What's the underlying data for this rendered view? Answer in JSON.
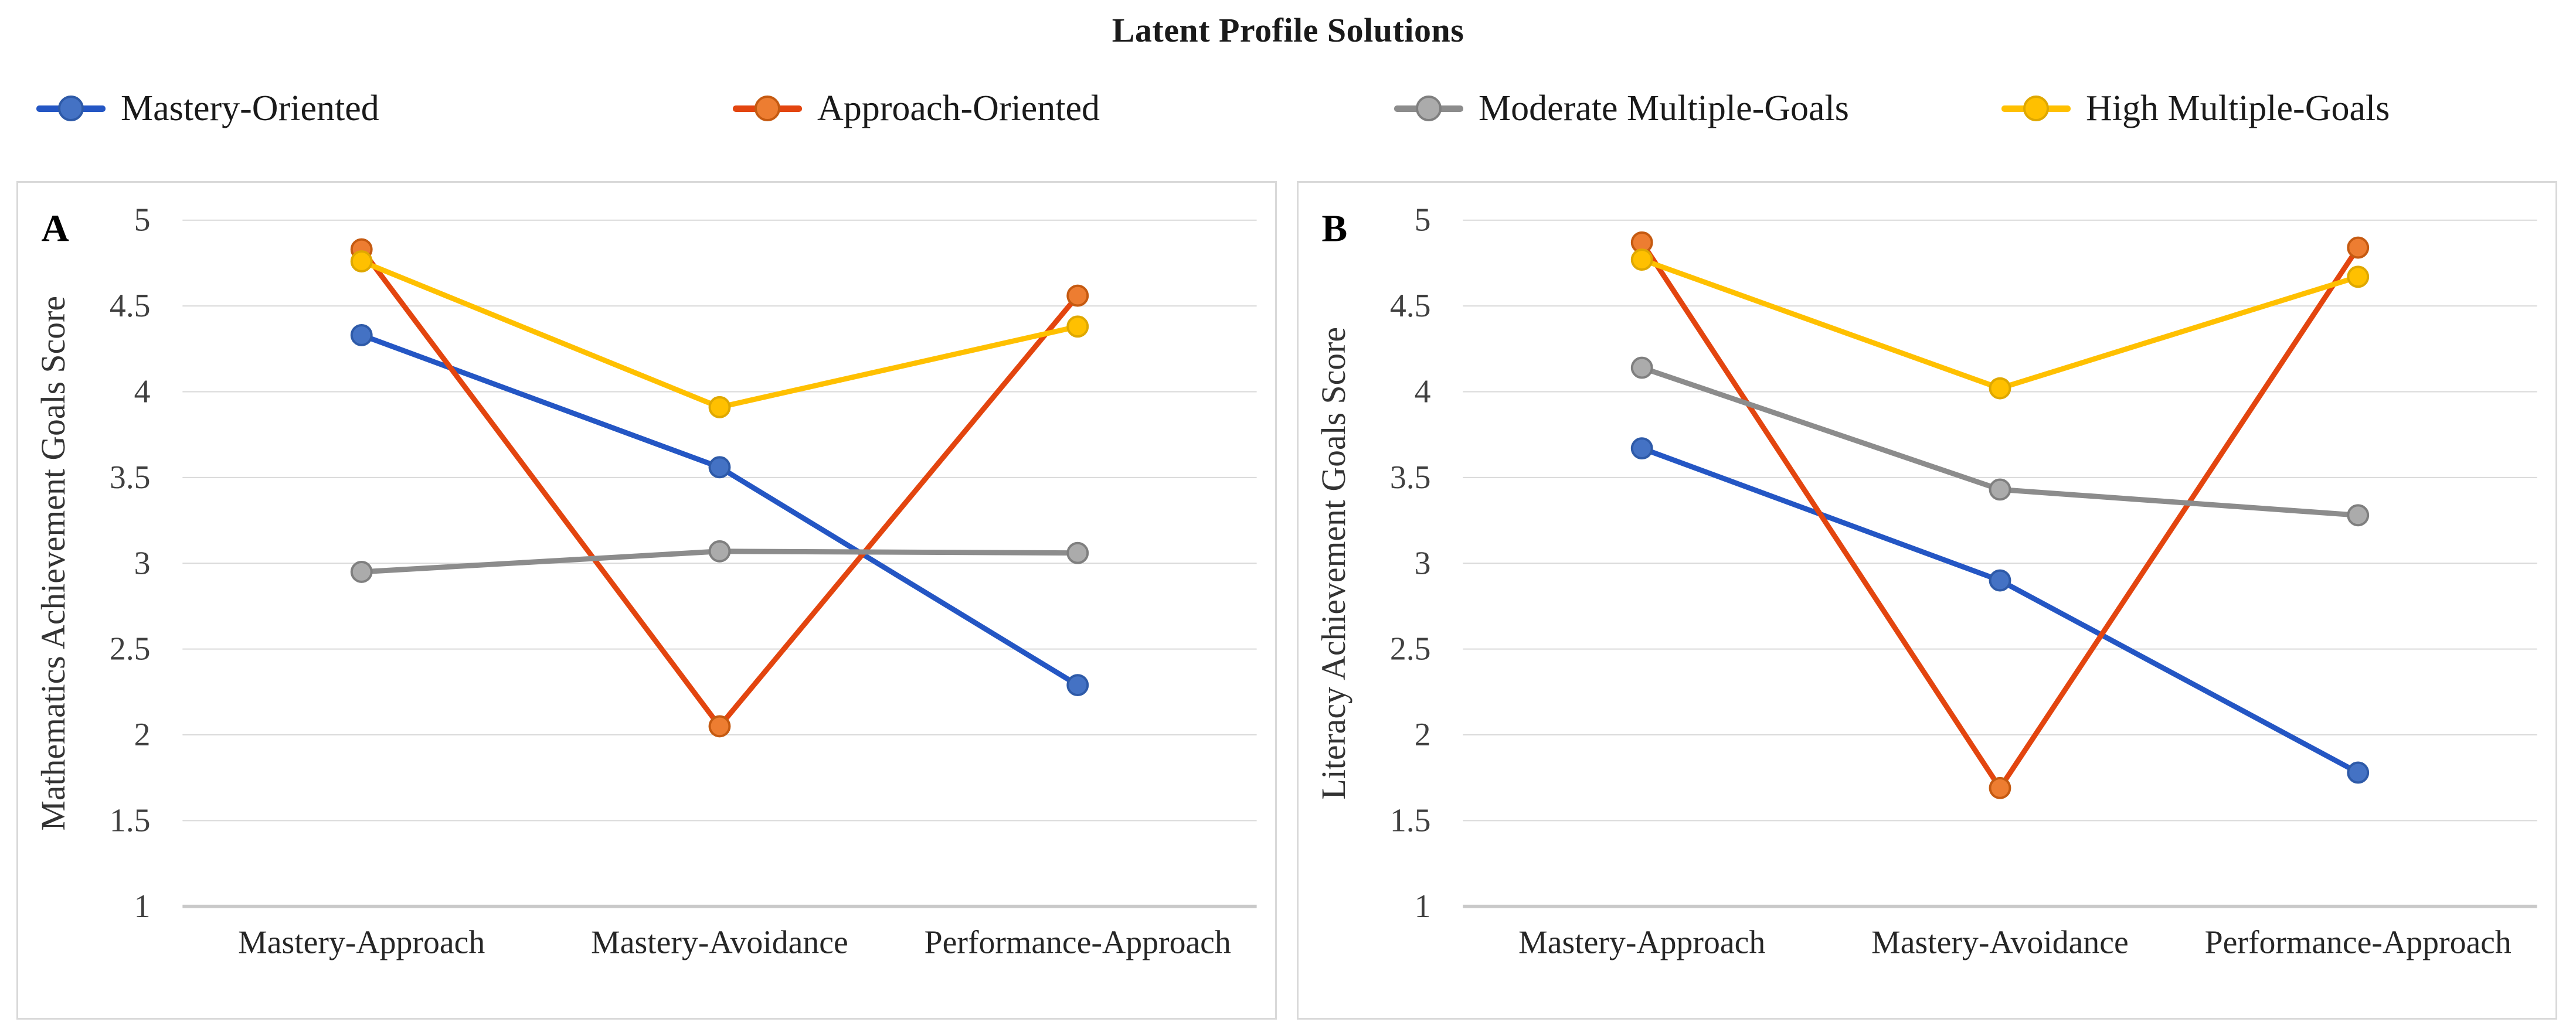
{
  "title": "Latent Profile Solutions",
  "legend": [
    {
      "label": "Mastery-Oriented",
      "line_color": "#2456C4",
      "marker_color": "#4472C4",
      "marker_rim": "#2E5AA8"
    },
    {
      "label": "Approach-Oriented",
      "line_color": "#E3450F",
      "marker_color": "#ED7D31",
      "marker_rim": "#C55A11"
    },
    {
      "label": "Moderate Multiple-Goals",
      "line_color": "#8C8C8C",
      "marker_color": "#ABABAB",
      "marker_rim": "#7F7F7F"
    },
    {
      "label": "High Multiple-Goals",
      "line_color": "#FFC000",
      "marker_color": "#FFC000",
      "marker_rim": "#DFA800"
    }
  ],
  "chart_data": [
    {
      "type": "line",
      "panel_label": "A",
      "title": "",
      "xlabel": "",
      "ylabel": "Mathematics Achievement Goals Score",
      "categories": [
        "Mastery-Approach",
        "Mastery-Avoidance",
        "Performance-Approach"
      ],
      "series": [
        {
          "name": "Mastery-Oriented",
          "values": [
            4.33,
            3.56,
            2.29
          ]
        },
        {
          "name": "Approach-Oriented",
          "values": [
            4.83,
            2.05,
            4.56
          ]
        },
        {
          "name": "Moderate Multiple-Goals",
          "values": [
            2.95,
            3.07,
            3.06
          ]
        },
        {
          "name": "High Multiple-Goals",
          "values": [
            4.76,
            3.91,
            4.38
          ]
        }
      ],
      "ylim": [
        1,
        5
      ],
      "yticks": [
        5,
        4.5,
        4,
        3.5,
        3,
        2.5,
        2,
        1.5,
        1
      ],
      "grid": true,
      "legend_position": "top-shared"
    },
    {
      "type": "line",
      "panel_label": "B",
      "title": "",
      "xlabel": "",
      "ylabel": "Literacy Achievement Goals Score",
      "categories": [
        "Mastery-Approach",
        "Mastery-Avoidance",
        "Performance-Approach"
      ],
      "series": [
        {
          "name": "Mastery-Oriented",
          "values": [
            3.67,
            2.9,
            1.78
          ]
        },
        {
          "name": "Approach-Oriented",
          "values": [
            4.87,
            1.69,
            4.84
          ]
        },
        {
          "name": "Moderate Multiple-Goals",
          "values": [
            4.14,
            3.43,
            3.28
          ]
        },
        {
          "name": "High Multiple-Goals",
          "values": [
            4.77,
            4.02,
            4.67
          ]
        }
      ],
      "ylim": [
        1,
        5
      ],
      "yticks": [
        5,
        4.5,
        4,
        3.5,
        3,
        2.5,
        2,
        1.5,
        1
      ],
      "grid": true,
      "legend_position": "top-shared"
    }
  ],
  "style": {
    "gridline_color": "#d9d9d9",
    "axis_line_color": "#c9c9c9",
    "tick_label_color": "#404040",
    "category_label_color": "#262626",
    "ylabel_color": "#333333",
    "panel_letter_color": "#000000"
  }
}
